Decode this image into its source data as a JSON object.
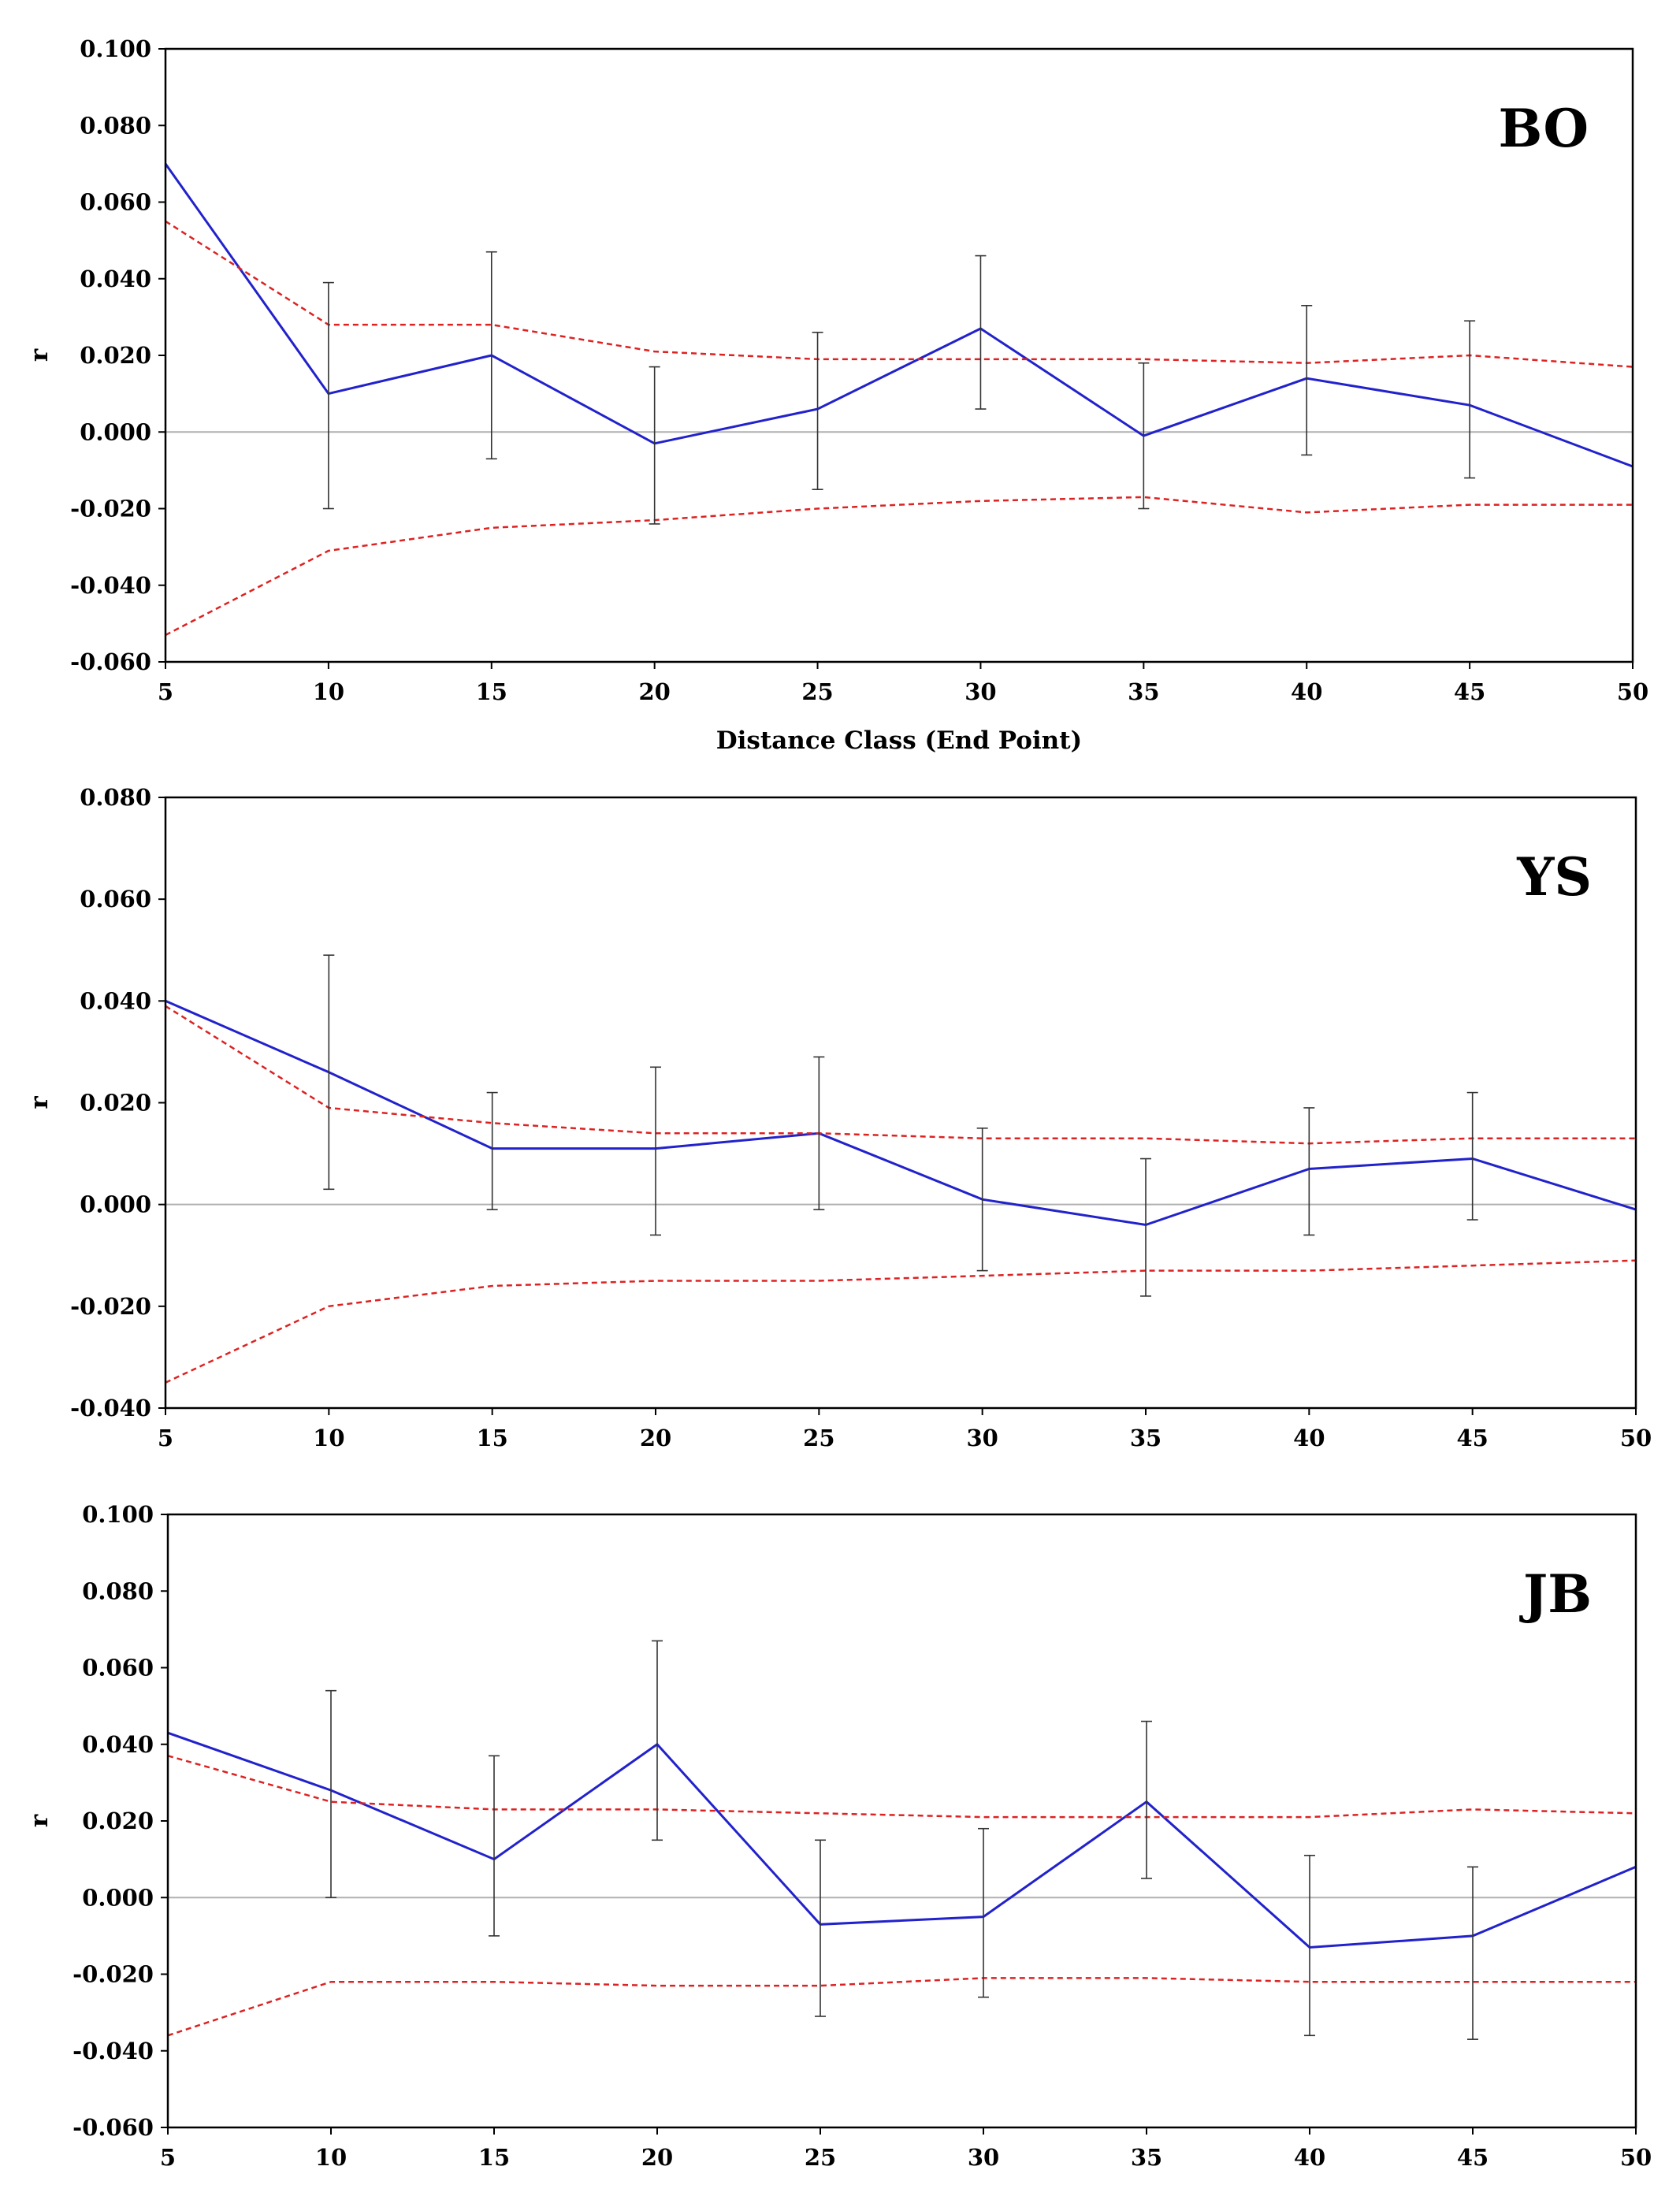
{
  "chart_data": [
    {
      "type": "line",
      "panel_label": "BO",
      "x": [
        5,
        10,
        15,
        20,
        25,
        30,
        35,
        40,
        45,
        50
      ],
      "xlabel": "Distance Class (End Point)",
      "ylabel": "r",
      "xlim": [
        5,
        50
      ],
      "ylim": [
        -0.06,
        0.1
      ],
      "xticks": [
        "5",
        "10",
        "15",
        "20",
        "25",
        "30",
        "35",
        "40",
        "45",
        "50"
      ],
      "yticks": [
        "0.100",
        "0.080",
        "0.060",
        "0.040",
        "0.020",
        "0.000",
        "-0.020",
        "-0.040",
        "-0.060"
      ],
      "grid": false,
      "series": [
        {
          "role": "observed",
          "color": "#2222cc",
          "style": "solid",
          "values": [
            0.07,
            0.01,
            0.02,
            -0.003,
            0.006,
            0.027,
            -0.001,
            0.014,
            0.007,
            -0.009
          ],
          "error_upper": [
            null,
            0.039,
            0.047,
            0.017,
            0.026,
            0.046,
            0.018,
            0.033,
            0.029,
            null
          ],
          "error_lower": [
            null,
            -0.02,
            -0.007,
            -0.024,
            -0.015,
            0.006,
            -0.02,
            -0.006,
            -0.012,
            null
          ]
        },
        {
          "role": "upper-confidence",
          "color": "#dd2222",
          "style": "dashed",
          "values": [
            0.055,
            0.028,
            0.028,
            0.021,
            0.019,
            0.019,
            0.019,
            0.018,
            0.02,
            0.017
          ]
        },
        {
          "role": "lower-confidence",
          "color": "#dd2222",
          "style": "dashed",
          "values": [
            -0.053,
            -0.031,
            -0.025,
            -0.023,
            -0.02,
            -0.018,
            -0.017,
            -0.021,
            -0.019,
            -0.019
          ]
        }
      ]
    },
    {
      "type": "line",
      "panel_label": "YS",
      "x": [
        5,
        10,
        15,
        20,
        25,
        30,
        35,
        40,
        45,
        50
      ],
      "xlabel": "",
      "ylabel": "r",
      "xlim": [
        5,
        50
      ],
      "ylim": [
        -0.04,
        0.08
      ],
      "xticks": [
        "5",
        "10",
        "15",
        "20",
        "25",
        "30",
        "35",
        "40",
        "45",
        "50"
      ],
      "yticks": [
        "0.080",
        "0.060",
        "0.040",
        "0.020",
        "0.000",
        "-0.020",
        "-0.040"
      ],
      "grid": false,
      "series": [
        {
          "role": "observed",
          "color": "#2222cc",
          "style": "solid",
          "values": [
            0.04,
            0.026,
            0.011,
            0.011,
            0.014,
            0.001,
            -0.004,
            0.007,
            0.009,
            -0.001
          ],
          "error_upper": [
            null,
            0.049,
            0.022,
            0.027,
            0.029,
            0.015,
            0.009,
            0.019,
            0.022,
            null
          ],
          "error_lower": [
            null,
            0.003,
            -0.001,
            -0.006,
            -0.001,
            -0.013,
            -0.018,
            -0.006,
            -0.003,
            null
          ]
        },
        {
          "role": "upper-confidence",
          "color": "#dd2222",
          "style": "dashed",
          "values": [
            0.039,
            0.019,
            0.016,
            0.014,
            0.014,
            0.013,
            0.013,
            0.012,
            0.013,
            0.013
          ]
        },
        {
          "role": "lower-confidence",
          "color": "#dd2222",
          "style": "dashed",
          "values": [
            -0.035,
            -0.02,
            -0.016,
            -0.015,
            -0.015,
            -0.014,
            -0.013,
            -0.013,
            -0.012,
            -0.011
          ]
        }
      ]
    },
    {
      "type": "line",
      "panel_label": "JB",
      "x": [
        5,
        10,
        15,
        20,
        25,
        30,
        35,
        40,
        45,
        50
      ],
      "xlabel": "",
      "ylabel": "r",
      "xlim": [
        5,
        50
      ],
      "ylim": [
        -0.06,
        0.1
      ],
      "xticks": [
        "5",
        "10",
        "15",
        "20",
        "25",
        "30",
        "35",
        "40",
        "45",
        "50"
      ],
      "yticks": [
        "0.100",
        "0.080",
        "0.060",
        "0.040",
        "0.020",
        "0.000",
        "-0.020",
        "-0.040",
        "-0.060"
      ],
      "grid": false,
      "series": [
        {
          "role": "observed",
          "color": "#2222cc",
          "style": "solid",
          "values": [
            0.043,
            0.028,
            0.01,
            0.04,
            -0.007,
            -0.005,
            0.025,
            -0.013,
            -0.01,
            0.008
          ],
          "error_upper": [
            null,
            0.054,
            0.037,
            0.067,
            0.015,
            0.018,
            0.046,
            0.011,
            0.008,
            null
          ],
          "error_lower": [
            null,
            0.0,
            -0.01,
            0.015,
            -0.031,
            -0.026,
            0.005,
            -0.036,
            -0.037,
            null
          ]
        },
        {
          "role": "upper-confidence",
          "color": "#dd2222",
          "style": "dashed",
          "values": [
            0.037,
            0.025,
            0.023,
            0.023,
            0.022,
            0.021,
            0.021,
            0.021,
            0.023,
            0.022
          ]
        },
        {
          "role": "lower-confidence",
          "color": "#dd2222",
          "style": "dashed",
          "values": [
            -0.036,
            -0.022,
            -0.022,
            -0.023,
            -0.023,
            -0.021,
            -0.021,
            -0.022,
            -0.022,
            -0.022
          ]
        }
      ]
    }
  ]
}
